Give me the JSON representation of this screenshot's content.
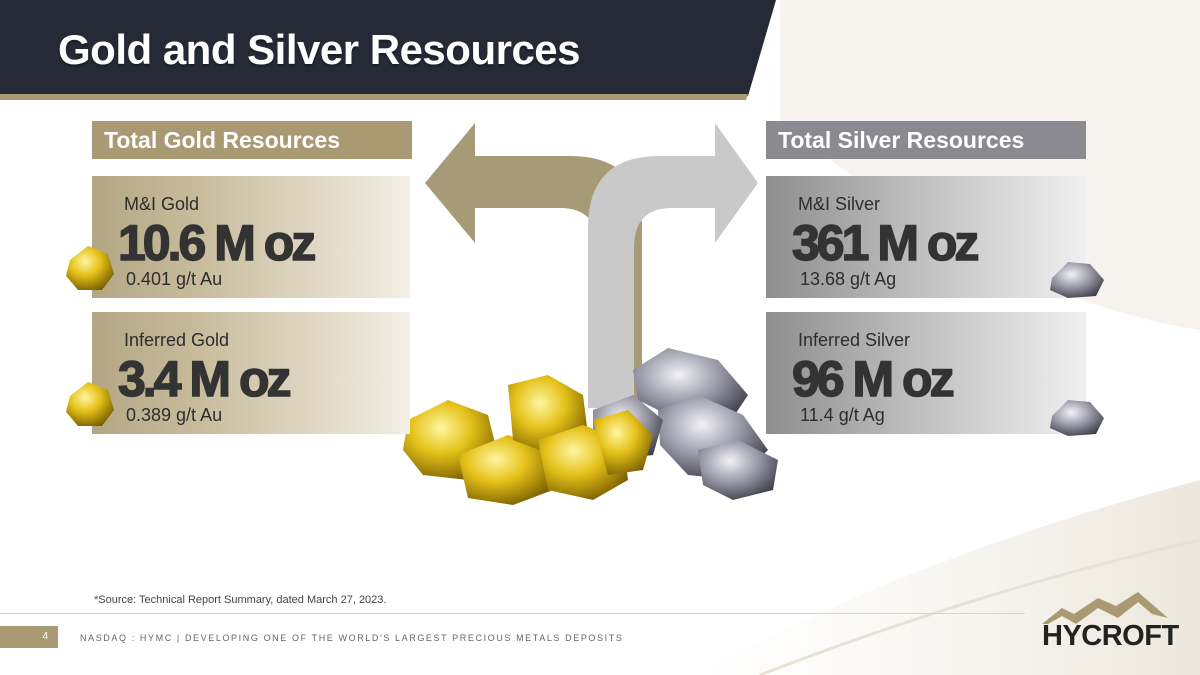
{
  "header": {
    "title": "Gold and Silver Resources"
  },
  "gold": {
    "section_title": "Total Gold Resources",
    "mi": {
      "label": "M&I Gold",
      "value": "10.6 M oz",
      "grade": "0.401 g/t Au"
    },
    "inferred": {
      "label": "Inferred Gold",
      "value": "3.4 M oz",
      "grade": "0.389 g/t Au"
    }
  },
  "silver": {
    "section_title": "Total Silver Resources",
    "mi": {
      "label": "M&I Silver",
      "value": "361 M oz",
      "grade": "13.68 g/t Ag"
    },
    "inferred": {
      "label": "Inferred Silver",
      "value": "96 M oz",
      "grade": "11.4 g/t Ag"
    }
  },
  "footer": {
    "source": "*Source: Technical Report Summary, dated March 27, 2023.",
    "page_number": "4",
    "text": "NASDAQ : HYMC | DEVELOPING ONE OF THE WORLD'S LARGEST PRECIOUS METALS DEPOSITS"
  },
  "logo": {
    "text": "HYCROFT"
  },
  "colors": {
    "header_bg": "#262a36",
    "gold_accent": "#a99a74",
    "silver_accent": "#8b8a91"
  },
  "icons": [
    "left-arrow-icon",
    "right-arrow-icon",
    "gold-nugget-icon",
    "silver-nugget-icon",
    "mountain-logo-icon"
  ]
}
